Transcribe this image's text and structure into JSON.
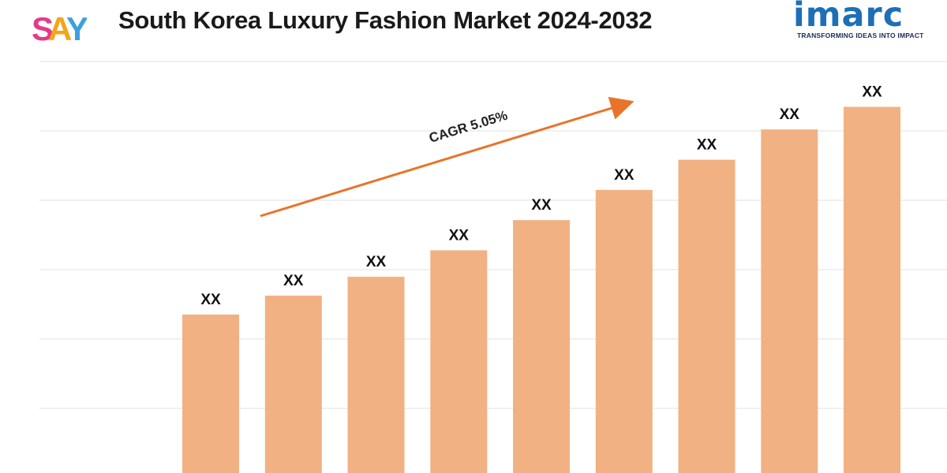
{
  "header": {
    "title": "South Korea Luxury Fashion Market 2024-2032",
    "left_logo_text": "SAY",
    "right_logo_text": "imarc",
    "right_logo_tagline": "TRANSFORMING IDEAS INTO IMPACT"
  },
  "colors": {
    "bar": "#f2b183",
    "arrow": "#e8742a",
    "imarc_blue": "#1d6fb8"
  },
  "chart_data": {
    "type": "bar",
    "title": "South Korea Luxury Fashion Market 2024-2032",
    "categories": [
      "",
      "",
      "",
      "",
      "",
      "",
      "",
      "",
      ""
    ],
    "values": [
      43,
      48,
      53,
      60,
      68,
      76,
      84,
      92,
      98
    ],
    "data_labels": [
      "XX",
      "XX",
      "XX",
      "XX",
      "XX",
      "XX",
      "XX",
      "XX",
      "XX"
    ],
    "ylim": [
      0,
      110
    ],
    "grid": true,
    "annotation": "CAGR 5.05%",
    "xlabel": "",
    "ylabel": ""
  }
}
